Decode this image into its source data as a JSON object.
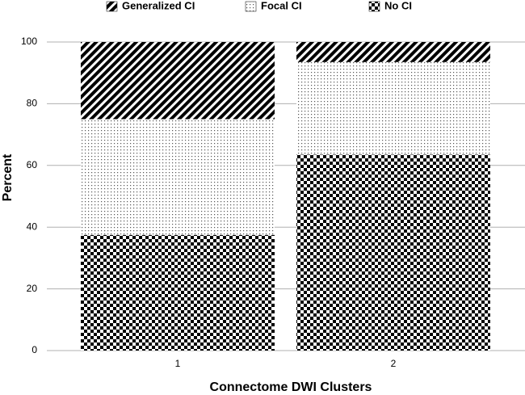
{
  "chart_data": {
    "type": "stacked-bar",
    "x_label": "Connectome DWI Clusters",
    "y_label": "Percent",
    "categories": [
      "1",
      "2"
    ],
    "series": [
      {
        "name": "No CI",
        "color": "#000000",
        "pattern": "checker",
        "values": [
          37.5,
          63.5
        ]
      },
      {
        "name": "Focal CI",
        "color": "#000000",
        "pattern": "dots",
        "values": [
          37.5,
          30
        ]
      },
      {
        "name": "Generalized CI",
        "color": "#000000",
        "pattern": "stripes",
        "values": [
          25,
          6.5
        ]
      }
    ],
    "ylim": [
      0,
      100
    ],
    "yticks": [
      0,
      20,
      40,
      60,
      80,
      100
    ],
    "grid": true,
    "legend": "top"
  }
}
